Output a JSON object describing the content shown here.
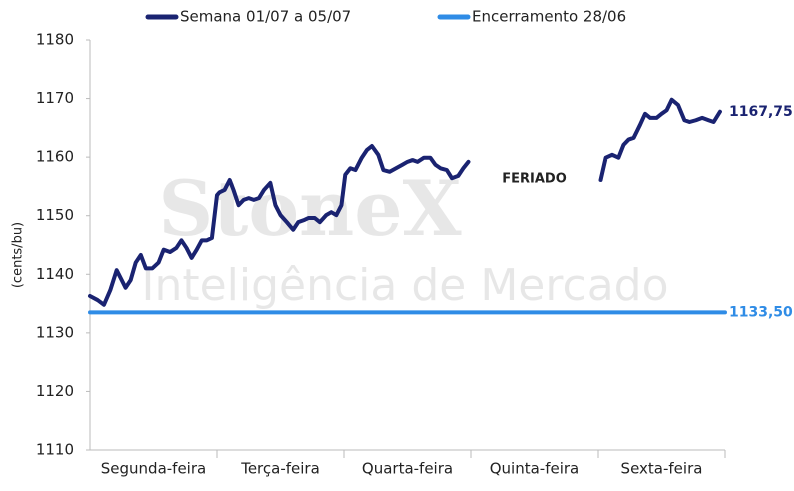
{
  "chart_data": {
    "type": "line",
    "y_label": "(cents/bu)",
    "watermark": [
      "StoneX",
      "Inteligência de Mercado"
    ],
    "categories": [
      "Segunda-feira",
      "Terça-feira",
      "Quarta-feira",
      "Quinta-feira",
      "Sexta-feira"
    ],
    "xlim": [
      0,
      5
    ],
    "ylim": [
      1110,
      1180
    ],
    "yticks": [
      1110,
      1120,
      1130,
      1140,
      1150,
      1160,
      1170,
      1180
    ],
    "grid": false,
    "annotations": [
      {
        "text": "FERIADO",
        "category": 3
      }
    ],
    "series": [
      {
        "name": "Semana 01/07 a 05/07",
        "color": "#1a2371",
        "end_label": {
          "value": 1167.75,
          "label": "1167,75"
        },
        "x": [
          0,
          0.06,
          0.11,
          0.16,
          0.21,
          0.25,
          0.28,
          0.32,
          0.36,
          0.4,
          0.44,
          0.49,
          0.54,
          0.58,
          0.63,
          0.68,
          0.72,
          0.76,
          0.8,
          0.84,
          0.88,
          0.92,
          0.96,
          1.0,
          1.02,
          1.06,
          1.1,
          1.13,
          1.17,
          1.21,
          1.25,
          1.29,
          1.33,
          1.37,
          1.42,
          1.46,
          1.5,
          1.55,
          1.6,
          1.64,
          1.69,
          1.72,
          1.77,
          1.81,
          1.86,
          1.9,
          1.94,
          1.98,
          2.01,
          2.05,
          2.09,
          2.14,
          2.18,
          2.22,
          2.27,
          2.31,
          2.36,
          2.41,
          2.46,
          2.5,
          2.54,
          2.58,
          2.63,
          2.68,
          2.72,
          2.76,
          2.81,
          2.85,
          2.9,
          2.94,
          2.98,
          3.5,
          4.02,
          4.06,
          4.11,
          4.16,
          4.2,
          4.24,
          4.28,
          4.33,
          4.37,
          4.41,
          4.46,
          4.5,
          4.54,
          4.58,
          4.63,
          4.68,
          4.72,
          4.77,
          4.82,
          4.87,
          4.91,
          4.96
        ],
        "values": [
          1136.3,
          1135.6,
          1134.8,
          1137.3,
          1140.7,
          1139,
          1137.7,
          1139,
          1142,
          1143.3,
          1141,
          1141,
          1142,
          1144.2,
          1143.8,
          1144.5,
          1145.8,
          1144.5,
          1142.8,
          1144.2,
          1145.8,
          1145.8,
          1146.2,
          1153.5,
          1154,
          1154.4,
          1156.1,
          1154.4,
          1151.8,
          1152.7,
          1153,
          1152.7,
          1153,
          1154.4,
          1155.6,
          1151.8,
          1150.1,
          1148.9,
          1147.6,
          1148.9,
          1149.3,
          1149.6,
          1149.6,
          1148.9,
          1150.1,
          1150.6,
          1150.1,
          1151.8,
          1157,
          1158.1,
          1157.8,
          1159.9,
          1161.2,
          1161.9,
          1160.4,
          1157.8,
          1157.5,
          1158.1,
          1158.7,
          1159.2,
          1159.5,
          1159.2,
          1159.9,
          1159.9,
          1158.7,
          1158.1,
          1157.8,
          1156.4,
          1156.8,
          1158.1,
          1159.2,
          null,
          1156.1,
          1159.9,
          1160.4,
          1159.9,
          1162.1,
          1163,
          1163.3,
          1165.5,
          1167.4,
          1166.7,
          1166.7,
          1167.4,
          1168,
          1169.8,
          1168.9,
          1166.3,
          1166,
          1166.3,
          1166.7,
          1166.3,
          1166,
          1167.75
        ]
      },
      {
        "name": "Encerramento 28/06",
        "color": "#2f8ce6",
        "end_label": {
          "value": 1133.5,
          "label": "1133,50"
        },
        "x": [
          0,
          5
        ],
        "values": [
          1133.5,
          1133.5
        ]
      }
    ]
  }
}
